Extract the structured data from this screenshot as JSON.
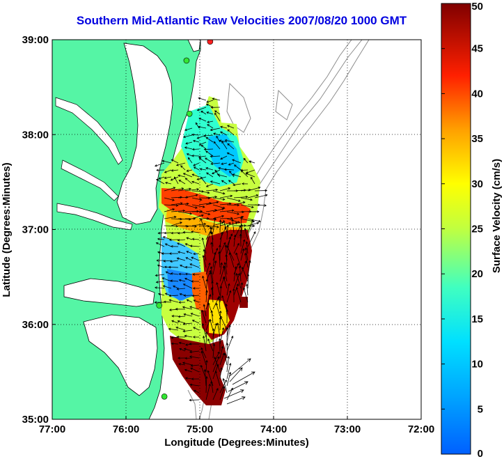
{
  "title": "Southern Mid-Atlantic Raw Velocities 2007/08/20 1000 GMT",
  "map": {
    "xlabel": "Longitude (Degrees:Minutes)",
    "ylabel": "Latitude (Degrees:Minutes)",
    "x_ticks": [
      "77:00",
      "76:00",
      "75:00",
      "74:00",
      "73:00",
      "72:00"
    ],
    "y_ticks": [
      "39:00",
      "38:00",
      "37:00",
      "36:00",
      "35:00"
    ],
    "lon_range": [
      -77,
      -72
    ],
    "lat_range": [
      35,
      39
    ],
    "grid": "dotted"
  },
  "colorbar": {
    "label": "Surface Velocity (cm/s)",
    "ticks": [
      "50",
      "45",
      "40",
      "35",
      "30",
      "25",
      "20",
      "15",
      "10",
      "5",
      "0"
    ],
    "range": [
      0,
      50
    ],
    "colormap": "jet"
  },
  "colors": {
    "land": "#55f5a5",
    "title": "#0000e0",
    "station": "#33e633",
    "station_alt": "#ff2020",
    "bathymetry": "#8c8c8c",
    "coastline": "#000000"
  },
  "stations": [
    {
      "name": "green-station",
      "lon": -75.18,
      "lat": 38.78
    },
    {
      "name": "green-station",
      "lon": -75.14,
      "lat": 38.22
    },
    {
      "name": "green-station",
      "lon": -75.55,
      "lat": 36.2
    },
    {
      "name": "green-station",
      "lon": -75.48,
      "lat": 35.24
    },
    {
      "name": "red-station",
      "lon": -74.86,
      "lat": 38.98
    }
  ]
}
